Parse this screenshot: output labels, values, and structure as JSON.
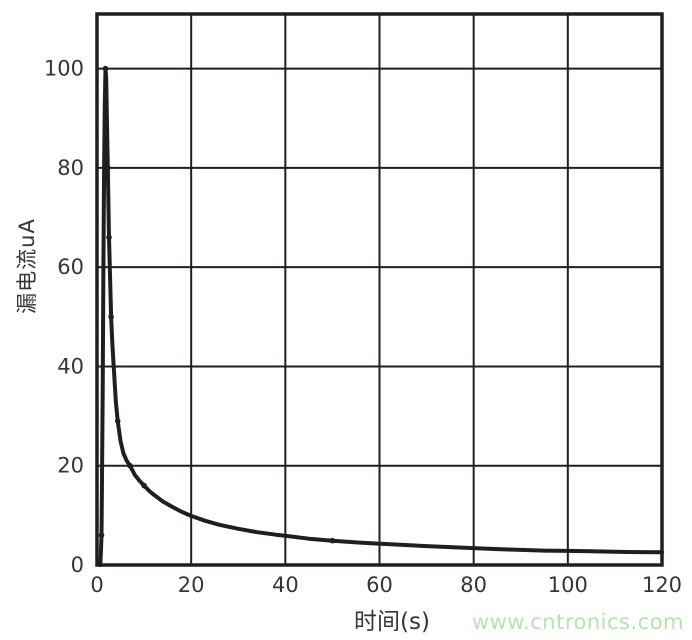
{
  "chart": {
    "x_title": "时间(s)",
    "y_title": "漏电流uA",
    "watermark": "www.cntronics.com"
  },
  "colors": {
    "line": "#221e1f",
    "grid": "#221e1f",
    "tick_text": "#35353b",
    "watermark": "#b7e2b3",
    "background": "#ffffff"
  },
  "chart_data": {
    "type": "line",
    "title": "",
    "xlabel": "时间(s)",
    "ylabel": "漏电流uA",
    "xlim": [
      0,
      120
    ],
    "ylim": [
      0,
      111
    ],
    "x_ticks": [
      0,
      20,
      40,
      60,
      80,
      100,
      120
    ],
    "y_ticks": [
      0,
      20,
      40,
      60,
      80,
      100
    ],
    "grid": true,
    "legend": false,
    "series": [
      {
        "name": "漏电流",
        "points": [
          [
            0.7,
            0
          ],
          [
            0.85,
            3
          ],
          [
            0.95,
            6
          ],
          [
            1.05,
            15
          ],
          [
            1.2,
            35
          ],
          [
            1.35,
            60
          ],
          [
            1.5,
            80
          ],
          [
            1.65,
            93
          ],
          [
            1.8,
            100
          ],
          [
            1.95,
            98
          ],
          [
            2.1,
            90
          ],
          [
            2.3,
            80
          ],
          [
            2.55,
            66
          ],
          [
            2.8,
            57
          ],
          [
            3.0,
            50
          ],
          [
            3.3,
            44
          ],
          [
            3.6,
            39
          ],
          [
            4.0,
            33
          ],
          [
            4.4,
            29
          ],
          [
            5.0,
            25
          ],
          [
            5.6,
            22.5
          ],
          [
            6.3,
            21
          ],
          [
            7.0,
            20
          ],
          [
            8.0,
            18.2
          ],
          [
            9.0,
            17
          ],
          [
            10,
            16
          ],
          [
            11,
            15
          ],
          [
            12,
            14.2
          ],
          [
            14,
            12.8
          ],
          [
            16,
            11.7
          ],
          [
            18,
            10.7
          ],
          [
            20,
            9.9
          ],
          [
            23,
            8.9
          ],
          [
            26,
            8.1
          ],
          [
            30,
            7.3
          ],
          [
            34,
            6.6
          ],
          [
            38,
            6.1
          ],
          [
            40,
            5.9
          ],
          [
            45,
            5.3
          ],
          [
            50,
            4.9
          ],
          [
            55,
            4.55
          ],
          [
            60,
            4.3
          ],
          [
            65,
            4.05
          ],
          [
            70,
            3.8
          ],
          [
            75,
            3.6
          ],
          [
            80,
            3.4
          ],
          [
            85,
            3.2
          ],
          [
            90,
            3.05
          ],
          [
            95,
            2.9
          ],
          [
            100,
            2.85
          ],
          [
            105,
            2.75
          ],
          [
            110,
            2.65
          ],
          [
            115,
            2.6
          ],
          [
            120,
            2.55
          ]
        ],
        "marker_points": [
          [
            0.95,
            6
          ],
          [
            1.8,
            100
          ],
          [
            2.3,
            80
          ],
          [
            2.55,
            66
          ],
          [
            3.0,
            50
          ],
          [
            4.4,
            29
          ],
          [
            7.0,
            20
          ],
          [
            10,
            16
          ],
          [
            50,
            4.9
          ]
        ]
      }
    ]
  }
}
